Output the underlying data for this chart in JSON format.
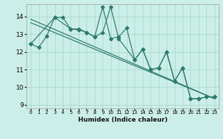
{
  "xlabel": "Humidex (Indice chaleur)",
  "bg_color": "#cceee8",
  "line_color": "#2d7a6e",
  "grid_color": "#aaddcc",
  "xlim": [
    -0.5,
    23.5
  ],
  "ylim": [
    8.8,
    14.7
  ],
  "xticks": [
    0,
    1,
    2,
    3,
    4,
    5,
    6,
    7,
    8,
    9,
    10,
    11,
    12,
    13,
    14,
    15,
    16,
    17,
    18,
    19,
    20,
    21,
    22,
    23
  ],
  "yticks": [
    9,
    10,
    11,
    12,
    13,
    14
  ],
  "series1_x": [
    0,
    1,
    2,
    3,
    4,
    5,
    6,
    7,
    8,
    9,
    10,
    11,
    12,
    13,
    14,
    15,
    16,
    17,
    18,
    19,
    20,
    21,
    22,
    23
  ],
  "series1_y": [
    12.45,
    12.25,
    12.9,
    13.95,
    13.95,
    13.3,
    13.3,
    13.1,
    12.85,
    14.55,
    12.75,
    12.85,
    13.35,
    11.55,
    12.15,
    11.0,
    11.1,
    12.0,
    10.35,
    11.1,
    9.35,
    9.35,
    9.45,
    9.45
  ],
  "series2_x": [
    0,
    3,
    5,
    6,
    7,
    8,
    9,
    10,
    11,
    13,
    14,
    15,
    16,
    17,
    18,
    19,
    20,
    21,
    22,
    23
  ],
  "series2_y": [
    12.45,
    13.95,
    13.3,
    13.25,
    13.1,
    12.85,
    13.1,
    14.55,
    12.75,
    11.55,
    12.15,
    11.0,
    11.1,
    12.0,
    10.35,
    11.1,
    9.35,
    9.35,
    9.45,
    9.45
  ],
  "trend1_x": [
    0,
    23
  ],
  "trend1_y": [
    13.85,
    9.35
  ],
  "trend2_x": [
    0,
    23
  ],
  "trend2_y": [
    13.65,
    9.35
  ]
}
